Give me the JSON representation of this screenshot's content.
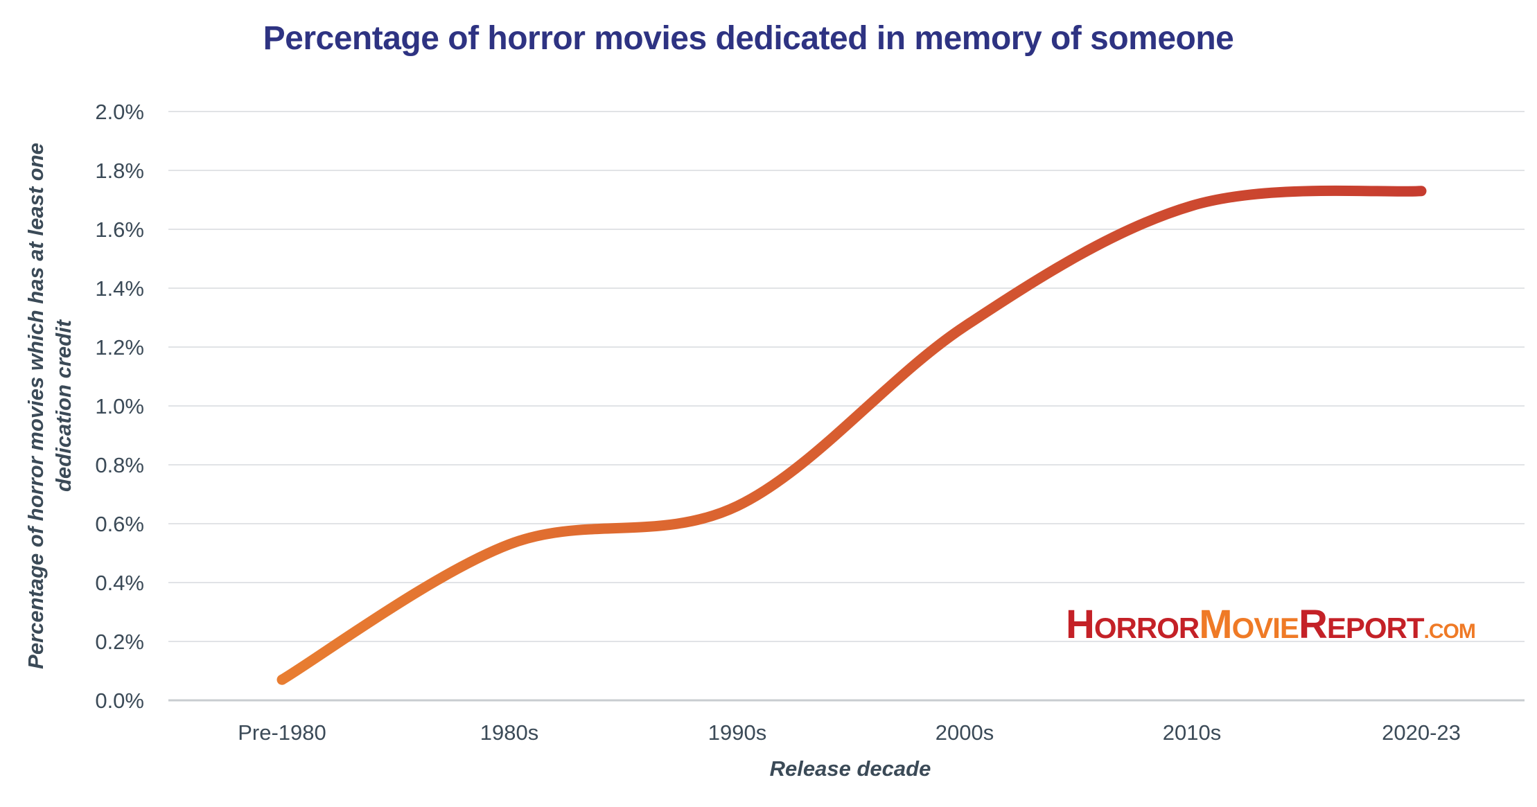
{
  "chart_data": {
    "type": "line",
    "title": "Percentage of horror movies dedicated in memory of someone",
    "xlabel": "Release decade",
    "ylabel": "Percentage of horror movies which has at least one dedication credit",
    "categories": [
      "Pre-1980",
      "1980s",
      "1990s",
      "2000s",
      "2010s",
      "2020-23"
    ],
    "values": [
      0.07,
      0.53,
      0.66,
      1.27,
      1.68,
      1.73
    ],
    "ylim": [
      0,
      2.0
    ],
    "yticks": [
      "0.0%",
      "0.2%",
      "0.4%",
      "0.6%",
      "0.8%",
      "1.0%",
      "1.2%",
      "1.4%",
      "1.6%",
      "1.8%",
      "2.0%"
    ],
    "grid": true,
    "smooth": true,
    "line_colors": [
      "#e87d31",
      "#c63c2f"
    ]
  },
  "logo": {
    "text": "HorrorMovieReport.com",
    "parts": [
      "H",
      "ORROR",
      "M",
      "OVIE",
      "R",
      "EPORT",
      ".COM"
    ],
    "colors": {
      "red": "#c42127",
      "orange": "#ef7a26"
    }
  },
  "colors": {
    "title": "#2e3382",
    "text": "#3b4a57",
    "grid": "#e1e3e6"
  }
}
